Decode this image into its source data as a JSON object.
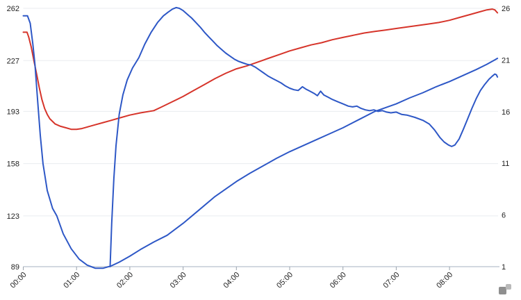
{
  "colors": {
    "background": "#ffffff",
    "red_series": "#d6342a",
    "blue_series": "#2d57c6",
    "gridline": "#e9ebef",
    "axis_line": "#c3cbd6",
    "axis_tick": "#9aa3ad",
    "label_text": "#1f1f1f",
    "logo_dark": "#8f8f8f",
    "logo_light": "#b9b9b9"
  },
  "branding": {
    "logo_name": "amcharts-logo"
  },
  "chart_data": {
    "type": "line",
    "title": "",
    "xlabel": "",
    "ylabel": "",
    "grid": "horizontal-only",
    "legend": "none",
    "x_axis": {
      "unit": "time",
      "tick_labels": [
        "00:00",
        "01:00",
        "02:00",
        "03:00",
        "04:00",
        "05:00",
        "06:00",
        "07:00",
        "08:00"
      ],
      "tick_hours": [
        0,
        1,
        2,
        3,
        4,
        5,
        6,
        7,
        8
      ],
      "range_hours": [
        0,
        8.9
      ],
      "label_rotation_deg": -45
    },
    "y_axis_left": {
      "tick_labels": [
        "262",
        "227",
        "193",
        "158",
        "123",
        "89"
      ],
      "tick_values": [
        262,
        227,
        193,
        158,
        123,
        89
      ],
      "range": [
        89,
        262
      ]
    },
    "y_axis_right": {
      "tick_labels": [
        "26",
        "21",
        "16",
        "11",
        "6",
        "1"
      ],
      "tick_values": [
        26,
        21,
        16,
        11,
        6,
        1
      ],
      "range": [
        1,
        26
      ]
    },
    "series": [
      {
        "name": "red-line",
        "color": "#d6342a",
        "axis": "left",
        "points": [
          [
            0,
            246
          ],
          [
            0.07,
            246
          ],
          [
            0.1,
            243
          ],
          [
            0.15,
            236
          ],
          [
            0.2,
            227
          ],
          [
            0.25,
            218
          ],
          [
            0.3,
            209
          ],
          [
            0.35,
            201
          ],
          [
            0.4,
            195
          ],
          [
            0.45,
            191
          ],
          [
            0.5,
            188
          ],
          [
            0.6,
            184.5
          ],
          [
            0.7,
            183
          ],
          [
            0.8,
            182
          ],
          [
            0.9,
            181
          ],
          [
            1.0,
            181
          ],
          [
            1.1,
            181.5
          ],
          [
            1.2,
            182.5
          ],
          [
            1.35,
            184
          ],
          [
            1.5,
            185.5
          ],
          [
            1.65,
            187
          ],
          [
            1.8,
            188.5
          ],
          [
            2.0,
            190.5
          ],
          [
            2.2,
            192
          ],
          [
            2.45,
            193.5
          ],
          [
            2.6,
            196
          ],
          [
            2.8,
            199.5
          ],
          [
            3.0,
            203
          ],
          [
            3.2,
            207
          ],
          [
            3.4,
            211
          ],
          [
            3.6,
            215
          ],
          [
            3.8,
            218.5
          ],
          [
            4.0,
            221.5
          ],
          [
            4.2,
            223.5
          ],
          [
            4.4,
            226
          ],
          [
            4.6,
            228.5
          ],
          [
            4.8,
            231
          ],
          [
            5.0,
            233.5
          ],
          [
            5.2,
            235.5
          ],
          [
            5.4,
            237.5
          ],
          [
            5.6,
            239
          ],
          [
            5.8,
            241
          ],
          [
            6.0,
            242.5
          ],
          [
            6.2,
            244
          ],
          [
            6.4,
            245.5
          ],
          [
            6.6,
            246.5
          ],
          [
            6.8,
            247.5
          ],
          [
            7.0,
            248.5
          ],
          [
            7.2,
            249.5
          ],
          [
            7.4,
            250.5
          ],
          [
            7.6,
            251.5
          ],
          [
            7.8,
            252.5
          ],
          [
            8.0,
            254
          ],
          [
            8.2,
            256
          ],
          [
            8.4,
            258
          ],
          [
            8.55,
            259.5
          ],
          [
            8.7,
            261
          ],
          [
            8.8,
            261.5
          ],
          [
            8.85,
            261
          ],
          [
            8.9,
            259
          ]
        ]
      },
      {
        "name": "blue-smooth-u-curve",
        "color": "#2d57c6",
        "axis": "left",
        "points": [
          [
            0,
            257
          ],
          [
            0.08,
            257
          ],
          [
            0.13,
            252
          ],
          [
            0.18,
            238
          ],
          [
            0.22,
            224
          ],
          [
            0.27,
            200
          ],
          [
            0.32,
            177
          ],
          [
            0.37,
            158
          ],
          [
            0.45,
            140
          ],
          [
            0.55,
            128
          ],
          [
            0.63,
            123
          ],
          [
            0.75,
            111
          ],
          [
            0.9,
            101
          ],
          [
            1.05,
            94
          ],
          [
            1.2,
            90
          ],
          [
            1.35,
            88
          ],
          [
            1.5,
            88
          ],
          [
            1.65,
            89.5
          ],
          [
            1.8,
            92
          ],
          [
            2.0,
            96
          ],
          [
            2.2,
            100.5
          ],
          [
            2.45,
            105.5
          ],
          [
            2.7,
            110
          ],
          [
            3.0,
            118
          ],
          [
            3.3,
            127
          ],
          [
            3.6,
            136
          ],
          [
            4.0,
            146
          ],
          [
            4.25,
            151.5
          ],
          [
            4.5,
            156.5
          ],
          [
            4.75,
            161.5
          ],
          [
            5.0,
            166
          ],
          [
            5.25,
            170
          ],
          [
            5.5,
            174
          ],
          [
            5.75,
            178
          ],
          [
            6.0,
            182
          ],
          [
            6.3,
            187.5
          ],
          [
            6.6,
            193
          ],
          [
            7.0,
            198
          ],
          [
            7.25,
            202
          ],
          [
            7.5,
            205.5
          ],
          [
            7.75,
            209.5
          ],
          [
            8.0,
            213
          ],
          [
            8.25,
            217
          ],
          [
            8.5,
            221
          ],
          [
            8.7,
            224.5
          ],
          [
            8.85,
            227.5
          ],
          [
            8.9,
            228.5
          ]
        ]
      },
      {
        "name": "blue-jagged-line",
        "color": "#2d57c6",
        "axis": "left",
        "points": [
          [
            1.63,
            89
          ],
          [
            1.66,
            118
          ],
          [
            1.7,
            148
          ],
          [
            1.74,
            170
          ],
          [
            1.8,
            191
          ],
          [
            1.87,
            204
          ],
          [
            1.95,
            214
          ],
          [
            2.05,
            222
          ],
          [
            2.17,
            229
          ],
          [
            2.28,
            238
          ],
          [
            2.4,
            246
          ],
          [
            2.52,
            252.5
          ],
          [
            2.63,
            257
          ],
          [
            2.72,
            259.5
          ],
          [
            2.8,
            261.5
          ],
          [
            2.87,
            262.5
          ],
          [
            2.93,
            262
          ],
          [
            3.0,
            260.5
          ],
          [
            3.08,
            258
          ],
          [
            3.16,
            255.5
          ],
          [
            3.24,
            252.5
          ],
          [
            3.32,
            249.5
          ],
          [
            3.4,
            246
          ],
          [
            3.48,
            243
          ],
          [
            3.56,
            240
          ],
          [
            3.64,
            237
          ],
          [
            3.72,
            234.5
          ],
          [
            3.8,
            232
          ],
          [
            3.88,
            230
          ],
          [
            3.96,
            228
          ],
          [
            4.04,
            226.5
          ],
          [
            4.12,
            225.5
          ],
          [
            4.2,
            224.5
          ],
          [
            4.28,
            224
          ],
          [
            4.36,
            222.5
          ],
          [
            4.44,
            220.5
          ],
          [
            4.52,
            218.5
          ],
          [
            4.6,
            216.5
          ],
          [
            4.68,
            215
          ],
          [
            4.76,
            213.5
          ],
          [
            4.84,
            212
          ],
          [
            4.92,
            210
          ],
          [
            5.0,
            208.5
          ],
          [
            5.08,
            207.5
          ],
          [
            5.16,
            207
          ],
          [
            5.24,
            209.5
          ],
          [
            5.3,
            208
          ],
          [
            5.38,
            206.5
          ],
          [
            5.46,
            205
          ],
          [
            5.52,
            203.5
          ],
          [
            5.58,
            206.5
          ],
          [
            5.64,
            204
          ],
          [
            5.72,
            202.5
          ],
          [
            5.8,
            201
          ],
          [
            5.9,
            199.5
          ],
          [
            6.0,
            198
          ],
          [
            6.1,
            196.5
          ],
          [
            6.18,
            196
          ],
          [
            6.26,
            196.5
          ],
          [
            6.34,
            195
          ],
          [
            6.42,
            194
          ],
          [
            6.5,
            193.5
          ],
          [
            6.58,
            194
          ],
          [
            6.66,
            193
          ],
          [
            6.74,
            193.5
          ],
          [
            6.82,
            192.5
          ],
          [
            6.9,
            192
          ],
          [
            7.0,
            192.5
          ],
          [
            7.1,
            191
          ],
          [
            7.2,
            190.5
          ],
          [
            7.35,
            189
          ],
          [
            7.5,
            187
          ],
          [
            7.62,
            184.5
          ],
          [
            7.72,
            180.5
          ],
          [
            7.82,
            175.5
          ],
          [
            7.9,
            172.5
          ],
          [
            7.98,
            170.5
          ],
          [
            8.04,
            169.5
          ],
          [
            8.1,
            170.5
          ],
          [
            8.18,
            174.5
          ],
          [
            8.26,
            181
          ],
          [
            8.34,
            188
          ],
          [
            8.42,
            195
          ],
          [
            8.5,
            201.5
          ],
          [
            8.58,
            207
          ],
          [
            8.66,
            211
          ],
          [
            8.74,
            214.5
          ],
          [
            8.8,
            216.5
          ],
          [
            8.85,
            218
          ],
          [
            8.88,
            217.5
          ],
          [
            8.9,
            216
          ]
        ]
      }
    ]
  }
}
